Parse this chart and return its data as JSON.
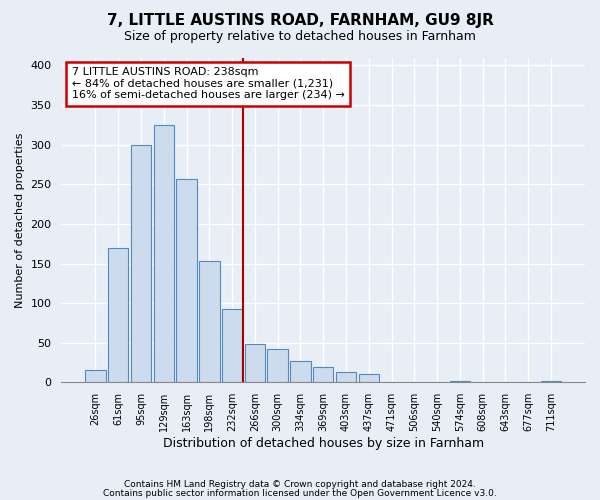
{
  "title": "7, LITTLE AUSTINS ROAD, FARNHAM, GU9 8JR",
  "subtitle": "Size of property relative to detached houses in Farnham",
  "xlabel": "Distribution of detached houses by size in Farnham",
  "ylabel": "Number of detached properties",
  "bar_labels": [
    "26sqm",
    "61sqm",
    "95sqm",
    "129sqm",
    "163sqm",
    "198sqm",
    "232sqm",
    "266sqm",
    "300sqm",
    "334sqm",
    "369sqm",
    "403sqm",
    "437sqm",
    "471sqm",
    "506sqm",
    "540sqm",
    "574sqm",
    "608sqm",
    "643sqm",
    "677sqm",
    "711sqm"
  ],
  "bar_values": [
    15,
    170,
    300,
    325,
    257,
    153,
    93,
    48,
    42,
    27,
    20,
    13,
    11,
    0,
    0,
    0,
    2,
    0,
    0,
    0,
    2
  ],
  "bar_color": "#ccdcee",
  "bar_edge_color": "#5588bb",
  "vline_x": 6.5,
  "vline_color": "#aa0000",
  "annotation_text": "7 LITTLE AUSTINS ROAD: 238sqm\n← 84% of detached houses are smaller (1,231)\n16% of semi-detached houses are larger (234) →",
  "annotation_box_color": "#ffffff",
  "annotation_box_edge": "#cc0000",
  "ylim": [
    0,
    410
  ],
  "yticks": [
    0,
    50,
    100,
    150,
    200,
    250,
    300,
    350,
    400
  ],
  "footer1": "Contains HM Land Registry data © Crown copyright and database right 2024.",
  "footer2": "Contains public sector information licensed under the Open Government Licence v3.0.",
  "bg_color": "#e8eef5",
  "plot_bg_color": "#e8eef5",
  "grid_color": "#ffffff"
}
